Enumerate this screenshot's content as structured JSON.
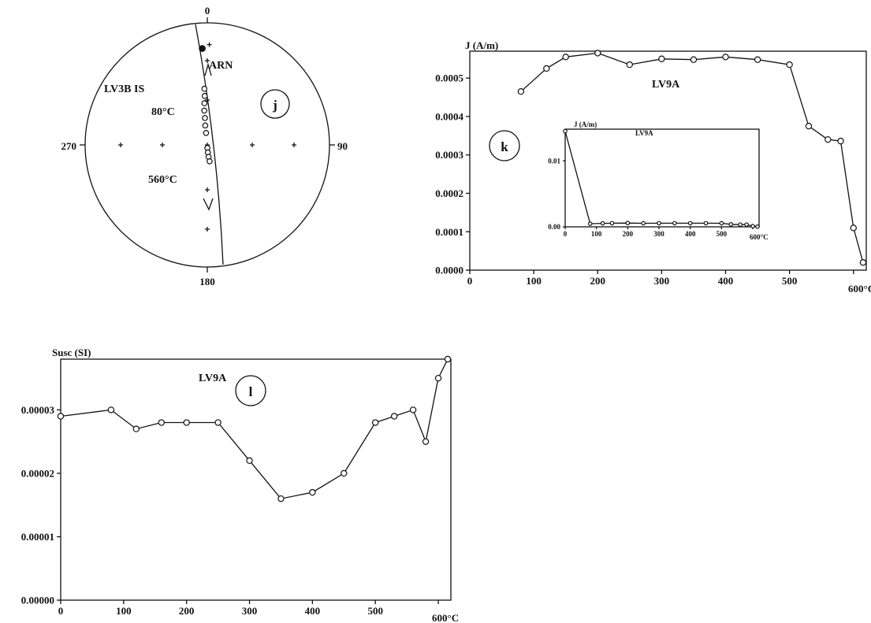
{
  "chart_data": [
    {
      "id": "j",
      "type": "scatter",
      "subtype": "stereonet",
      "panel_label": "j",
      "sample_label": "LV3B IS",
      "direction_labels": [
        "0",
        "90",
        "180",
        "270"
      ],
      "annotations": {
        "north_mark": "ARN",
        "start_temp": "80°C",
        "end_temp": "560°C"
      },
      "points": [
        {
          "dec": 357,
          "inc": 52
        },
        {
          "dec": 357,
          "inc": 57
        },
        {
          "dec": 356,
          "inc": 62
        },
        {
          "dec": 355,
          "inc": 67
        },
        {
          "dec": 355,
          "inc": 72
        },
        {
          "dec": 354,
          "inc": 77
        },
        {
          "dec": 354,
          "inc": 82
        },
        {
          "dec": 178,
          "inc": 88
        },
        {
          "dec": 176,
          "inc": 85
        },
        {
          "dec": 174,
          "inc": 82
        },
        {
          "dec": 172,
          "inc": 79
        }
      ],
      "ref_point": {
        "dec": 357,
        "inc": 22
      }
    },
    {
      "id": "k",
      "type": "line",
      "panel_label": "k",
      "ylabel": "J (A/m)",
      "legend": "LV9A",
      "x_unit": "600°C",
      "xlim": [
        0,
        620
      ],
      "ylim": [
        0,
        0.00057
      ],
      "xticks": [
        0,
        100,
        200,
        300,
        400,
        500,
        600
      ],
      "yticks": [
        "0.0000",
        "0.0001",
        "0.0002",
        "0.0003",
        "0.0004",
        "0.0005"
      ],
      "x": [
        80,
        120,
        150,
        200,
        250,
        300,
        350,
        400,
        450,
        500,
        530,
        560,
        580,
        600,
        615
      ],
      "y": [
        0.000465,
        0.000525,
        0.000555,
        0.000565,
        0.000535,
        0.00055,
        0.000548,
        0.000555,
        0.000548,
        0.000535,
        0.000375,
        0.00034,
        0.000336,
        0.00011,
        2e-05
      ],
      "inset": {
        "ylabel": "J (A/m)",
        "legend": "LV9A",
        "x_unit": "600°C",
        "xlim": [
          0,
          620
        ],
        "ylim": [
          0,
          0.0148
        ],
        "xticks": [
          0,
          100,
          200,
          300,
          400,
          500,
          600
        ],
        "yticks": [
          "0.00",
          "0.01"
        ],
        "x": [
          0,
          80,
          120,
          150,
          200,
          250,
          300,
          350,
          400,
          450,
          500,
          530,
          560,
          580,
          600,
          615
        ],
        "y": [
          0.0145,
          0.00047,
          0.00053,
          0.00055,
          0.00057,
          0.00054,
          0.00055,
          0.00055,
          0.00055,
          0.00055,
          0.00054,
          0.00038,
          0.00034,
          0.00034,
          0.00011,
          2e-05
        ]
      }
    },
    {
      "id": "l",
      "type": "line",
      "panel_label": "l",
      "ylabel": "Susc (SI)",
      "legend": "LV9A",
      "x_unit": "600°C",
      "xlim": [
        0,
        620
      ],
      "ylim": [
        0,
        3.8e-05
      ],
      "xticks": [
        0,
        100,
        200,
        300,
        400,
        500,
        600
      ],
      "yticks": [
        "0.00000",
        "0.00001",
        "0.00002",
        "0.00003"
      ],
      "x": [
        0,
        80,
        120,
        160,
        200,
        250,
        300,
        350,
        400,
        450,
        500,
        530,
        560,
        580,
        600,
        615
      ],
      "y": [
        2.9e-05,
        3e-05,
        2.7e-05,
        2.8e-05,
        2.8e-05,
        2.8e-05,
        2.2e-05,
        1.6e-05,
        1.7e-05,
        2e-05,
        2.8e-05,
        2.9e-05,
        3e-05,
        2.5e-05,
        3.5e-05,
        3.8e-05
      ]
    }
  ]
}
